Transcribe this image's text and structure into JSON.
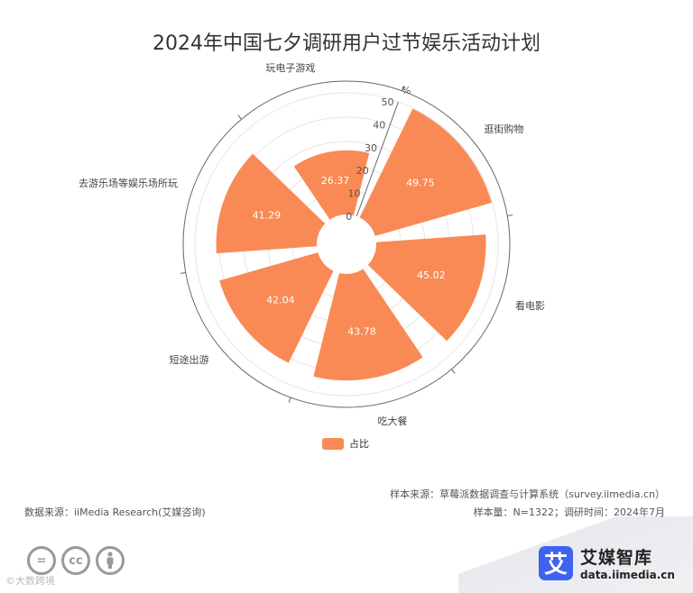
{
  "title": "2024年中国七夕调研用户过节娱乐活动计划",
  "chart_data": {
    "type": "polar-bar",
    "categories": [
      "逛街购物",
      "看电影",
      "吃大餐",
      "短途出游",
      "去游乐场等娱乐场所玩",
      "玩电子游戏"
    ],
    "series": [
      {
        "name": "占比",
        "values": [
          49.75,
          45.02,
          43.78,
          42.04,
          41.29,
          26.37
        ]
      }
    ],
    "value_labels": [
      "49.75",
      "45.02",
      "43.78",
      "42.04",
      "41.29",
      "26.37"
    ],
    "radial_unit": "%",
    "radial_ticks": [
      "0",
      "10",
      "20",
      "30",
      "40",
      "50"
    ],
    "radial_range": [
      0,
      50
    ],
    "color": "#F98A55"
  },
  "legend": {
    "label": "占比"
  },
  "source": {
    "sample_source": "样本来源：草莓派数据调查与计算系统（survey.iimedia.cn）",
    "data_source": "数据来源：iiMedia Research(艾媒咨询)",
    "sample_info": "样本量：N=1322；调研时间：2024年7月"
  },
  "brand": {
    "logo_char": "艾",
    "name": "艾媒智库",
    "url": "data.iimedia.cn"
  },
  "license_icons": [
    "=",
    "cc",
    "person"
  ],
  "watermark": "©大数跨境"
}
